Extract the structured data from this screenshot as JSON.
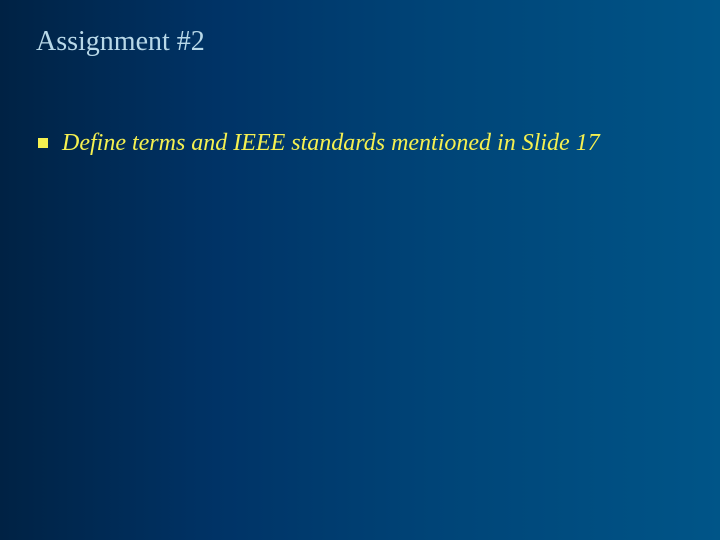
{
  "slide": {
    "title": "Assignment #2",
    "title_color": "#b8d8e8",
    "title_fontsize": 28,
    "background_gradient": {
      "direction": "to right",
      "stops": [
        "#002244",
        "#003366",
        "#004477",
        "#005588"
      ]
    },
    "bullets": [
      {
        "text": "Define terms and IEEE standards mentioned in Slide 17",
        "marker_shape": "square",
        "marker_color": "#f5f050",
        "text_color": "#f5f050",
        "font_style": "italic",
        "fontsize": 24
      }
    ]
  }
}
